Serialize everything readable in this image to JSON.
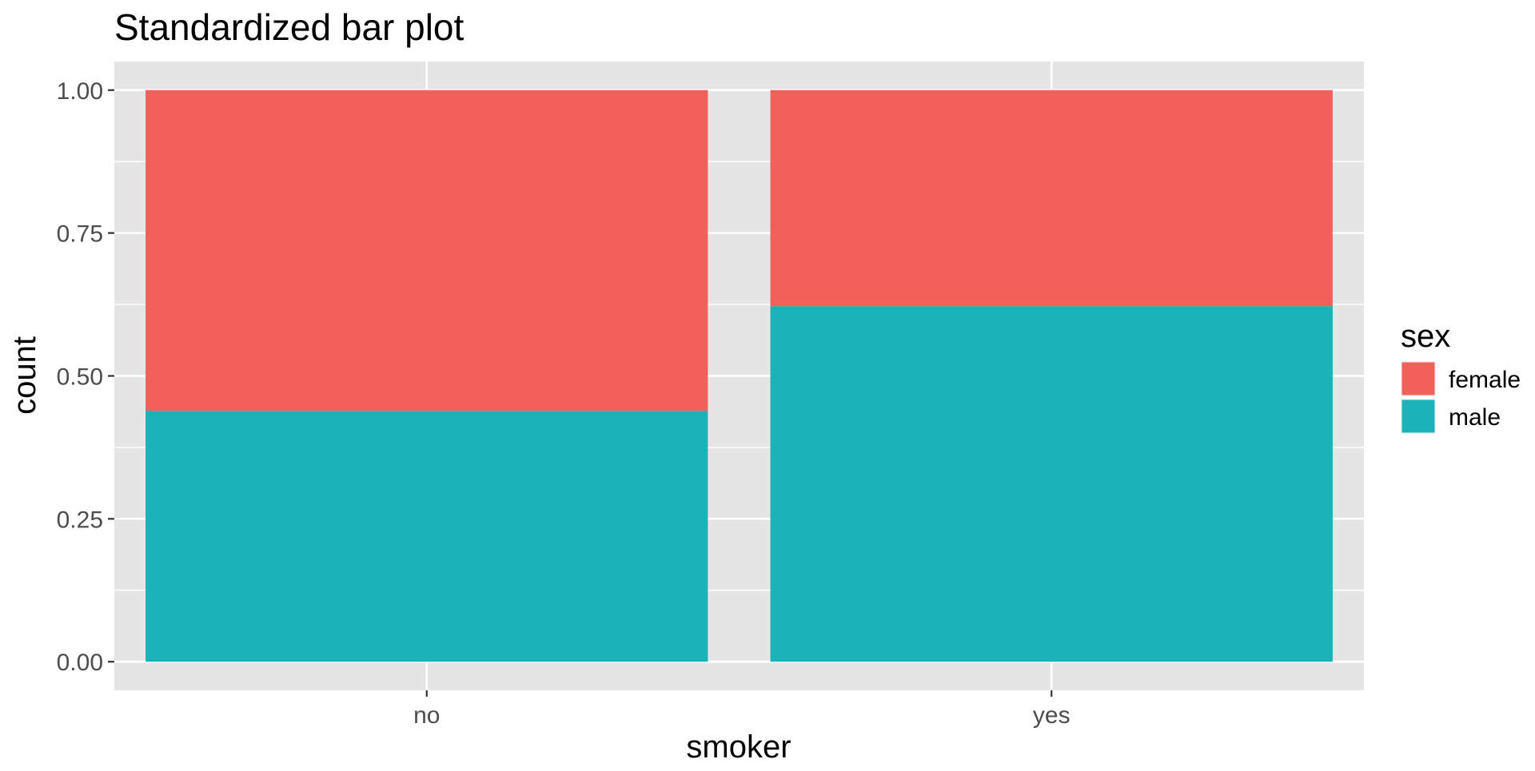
{
  "chart_data": {
    "type": "bar",
    "stacked": true,
    "title": "Standardized bar plot",
    "xlabel": "smoker",
    "ylabel": "count",
    "categories": [
      "no",
      "yes"
    ],
    "series": [
      {
        "name": "female",
        "values": [
          0.561,
          0.378
        ],
        "color": "#F2605C"
      },
      {
        "name": "male",
        "values": [
          0.439,
          0.622
        ],
        "color": "#1AB3B8"
      }
    ],
    "stack_order_bottom_to_top": [
      "male",
      "female"
    ],
    "ylim": [
      -0.05,
      1.05
    ],
    "yticks": [
      0,
      0.25,
      0.5,
      0.75,
      1
    ],
    "ytick_labels": [
      "0.00",
      "0.25",
      "0.50",
      "0.75",
      "1.00"
    ],
    "grid": true,
    "panel_background": "#E5E5E5",
    "grid_color": "#FFFFFF",
    "legend": {
      "title": "sex",
      "position": "right",
      "entries": [
        "female",
        "male"
      ]
    }
  }
}
